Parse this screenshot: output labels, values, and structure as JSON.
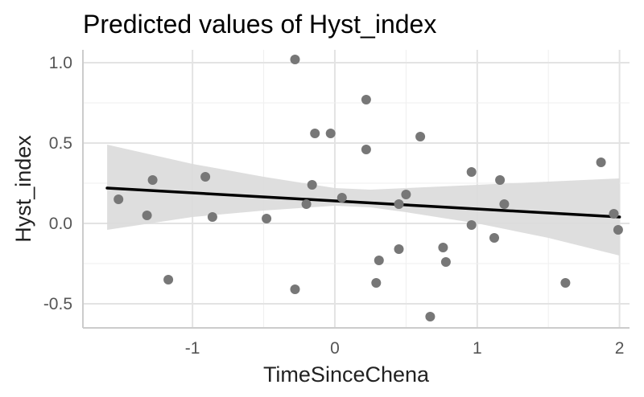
{
  "chart_data": {
    "type": "scatter",
    "title": "Predicted values of Hyst_index",
    "xlabel": "TimeSinceChena",
    "ylabel": "Hyst_index",
    "xlim": [
      -1.77,
      2.07
    ],
    "ylim": [
      -0.65,
      1.08
    ],
    "xticks": [
      -1,
      0,
      1,
      2
    ],
    "xtick_labels": [
      "-1",
      "0",
      "1",
      "2"
    ],
    "yticks": [
      -0.5,
      0,
      0.5,
      1
    ],
    "ytick_labels": [
      "-0.5",
      "0.0",
      "0.5",
      "1.0"
    ],
    "grid": true,
    "colors": {
      "points": "#777777",
      "line": "#000000",
      "ribbon": "#dadada"
    },
    "points": [
      {
        "x": -1.52,
        "y": 0.15
      },
      {
        "x": -1.32,
        "y": 0.05
      },
      {
        "x": -1.28,
        "y": 0.27
      },
      {
        "x": -1.17,
        "y": -0.35
      },
      {
        "x": -0.91,
        "y": 0.29
      },
      {
        "x": -0.86,
        "y": 0.04
      },
      {
        "x": -0.48,
        "y": 0.03
      },
      {
        "x": -0.28,
        "y": 1.02
      },
      {
        "x": -0.28,
        "y": -0.41
      },
      {
        "x": -0.2,
        "y": 0.12
      },
      {
        "x": -0.16,
        "y": 0.24
      },
      {
        "x": -0.14,
        "y": 0.56
      },
      {
        "x": -0.03,
        "y": 0.56
      },
      {
        "x": 0.05,
        "y": 0.16
      },
      {
        "x": 0.22,
        "y": 0.77
      },
      {
        "x": 0.22,
        "y": 0.46
      },
      {
        "x": 0.29,
        "y": -0.37
      },
      {
        "x": 0.31,
        "y": -0.23
      },
      {
        "x": 0.45,
        "y": 0.12
      },
      {
        "x": 0.45,
        "y": -0.16
      },
      {
        "x": 0.5,
        "y": 0.18
      },
      {
        "x": 0.6,
        "y": 0.54
      },
      {
        "x": 0.67,
        "y": -0.58
      },
      {
        "x": 0.76,
        "y": -0.15
      },
      {
        "x": 0.78,
        "y": -0.24
      },
      {
        "x": 0.96,
        "y": 0.32
      },
      {
        "x": 0.96,
        "y": -0.01
      },
      {
        "x": 1.12,
        "y": -0.09
      },
      {
        "x": 1.16,
        "y": 0.27
      },
      {
        "x": 1.19,
        "y": 0.12
      },
      {
        "x": 1.62,
        "y": -0.37
      },
      {
        "x": 1.87,
        "y": 0.38
      },
      {
        "x": 1.96,
        "y": 0.06
      },
      {
        "x": 1.99,
        "y": -0.04
      }
    ],
    "fit_line": [
      {
        "x": -1.6,
        "y": 0.22
      },
      {
        "x": 2.0,
        "y": 0.04
      }
    ],
    "ribbon": {
      "x": [
        -1.6,
        -1.0,
        -0.5,
        0.0,
        0.25,
        0.5,
        1.0,
        1.5,
        2.0
      ],
      "upper": [
        0.49,
        0.37,
        0.29,
        0.22,
        0.21,
        0.22,
        0.24,
        0.26,
        0.28
      ],
      "lower": [
        -0.04,
        0.04,
        0.08,
        0.11,
        0.1,
        0.07,
        0.0,
        -0.09,
        -0.2
      ]
    }
  }
}
